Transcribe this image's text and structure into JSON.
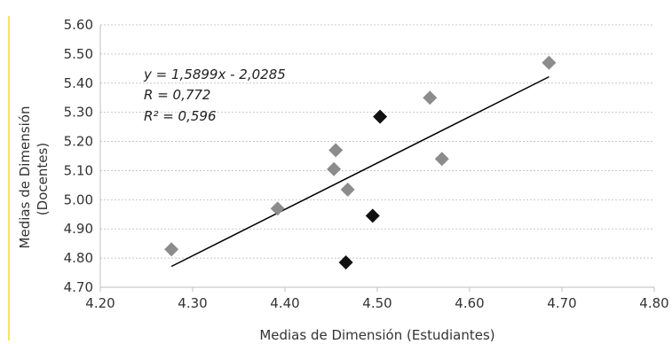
{
  "chart_data": {
    "type": "scatter",
    "xlabel": "Medias de Dimensión (Estudiantes)",
    "ylabel_lines": [
      "Medias de Dimensión",
      "(Docentes)"
    ],
    "xlim": [
      4.2,
      4.8
    ],
    "ylim": [
      4.7,
      5.6
    ],
    "x_ticks": [
      "4.20",
      "4.30",
      "4.40",
      "4.50",
      "4.60",
      "4.70",
      "4.80"
    ],
    "y_ticks": [
      "4.70",
      "4.80",
      "4.90",
      "5.00",
      "5.10",
      "5.20",
      "5.30",
      "5.40",
      "5.50",
      "5.60"
    ],
    "grid": "horizontal dotted",
    "marker": "diamond",
    "series": [
      {
        "color": "#8c8c8c",
        "points": [
          {
            "x": 4.277,
            "y": 4.83
          },
          {
            "x": 4.392,
            "y": 4.97
          },
          {
            "x": 4.453,
            "y": 5.105
          },
          {
            "x": 4.455,
            "y": 5.17
          },
          {
            "x": 4.468,
            "y": 5.035
          },
          {
            "x": 4.557,
            "y": 5.35
          },
          {
            "x": 4.57,
            "y": 5.14
          },
          {
            "x": 4.686,
            "y": 5.47
          }
        ]
      },
      {
        "color": "#111111",
        "points": [
          {
            "x": 4.466,
            "y": 4.785
          },
          {
            "x": 4.495,
            "y": 4.945
          },
          {
            "x": 4.503,
            "y": 5.285
          }
        ]
      }
    ],
    "trendline": {
      "slope": 1.5899,
      "intercept": -2.0285,
      "x_range": [
        4.277,
        4.686
      ],
      "color": "#000000"
    },
    "annotations": [
      "y = 1,5899x - 2,0285",
      "R = 0,772",
      "R² = 0,596"
    ]
  }
}
